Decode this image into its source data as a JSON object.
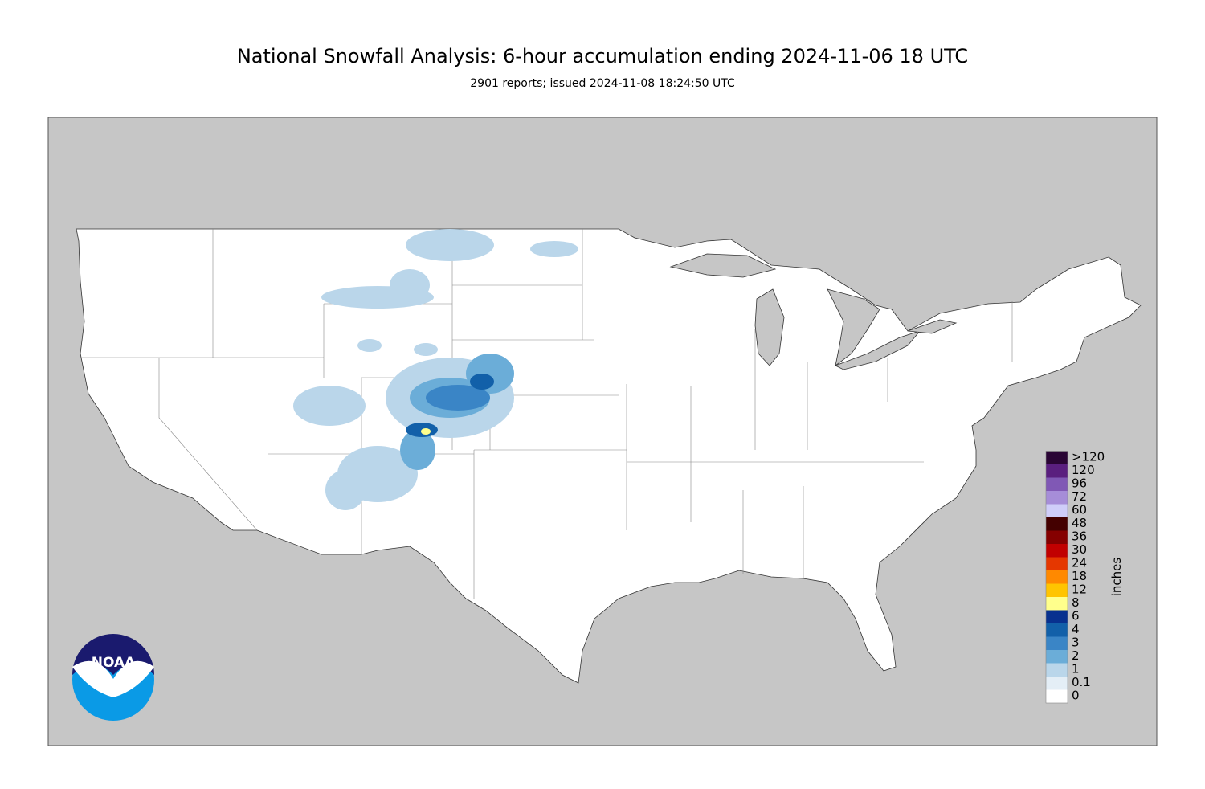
{
  "header": {
    "title": "National Snowfall Analysis: 6-hour accumulation ending 2024-11-06 18 UTC",
    "subtitle": "2901 reports; issued 2024-11-08 18:24:50 UTC"
  },
  "logo": {
    "text": "NOAA"
  },
  "legend": {
    "unit": "inches",
    "items": [
      {
        "label": "0",
        "color": "#ffffff"
      },
      {
        "label": "0.1",
        "color": "#e4eef6"
      },
      {
        "label": "1",
        "color": "#bad6ea"
      },
      {
        "label": "2",
        "color": "#6badd8"
      },
      {
        "label": "3",
        "color": "#3a85c6"
      },
      {
        "label": "4",
        "color": "#1260a9"
      },
      {
        "label": "6",
        "color": "#08318f"
      },
      {
        "label": "8",
        "color": "#ffff8c"
      },
      {
        "label": "12",
        "color": "#ffc400"
      },
      {
        "label": "18",
        "color": "#ff8900"
      },
      {
        "label": "24",
        "color": "#e53700"
      },
      {
        "label": "30",
        "color": "#c10000"
      },
      {
        "label": "36",
        "color": "#850000"
      },
      {
        "label": "48",
        "color": "#440000"
      },
      {
        "label": "60",
        "color": "#cfcdf9"
      },
      {
        "label": "72",
        "color": "#a68dd8"
      },
      {
        "label": "96",
        "color": "#8058b5"
      },
      {
        "label": "120",
        "color": "#5a1f7f"
      },
      {
        "label": ">120",
        "color": "#2a0535"
      }
    ]
  }
}
